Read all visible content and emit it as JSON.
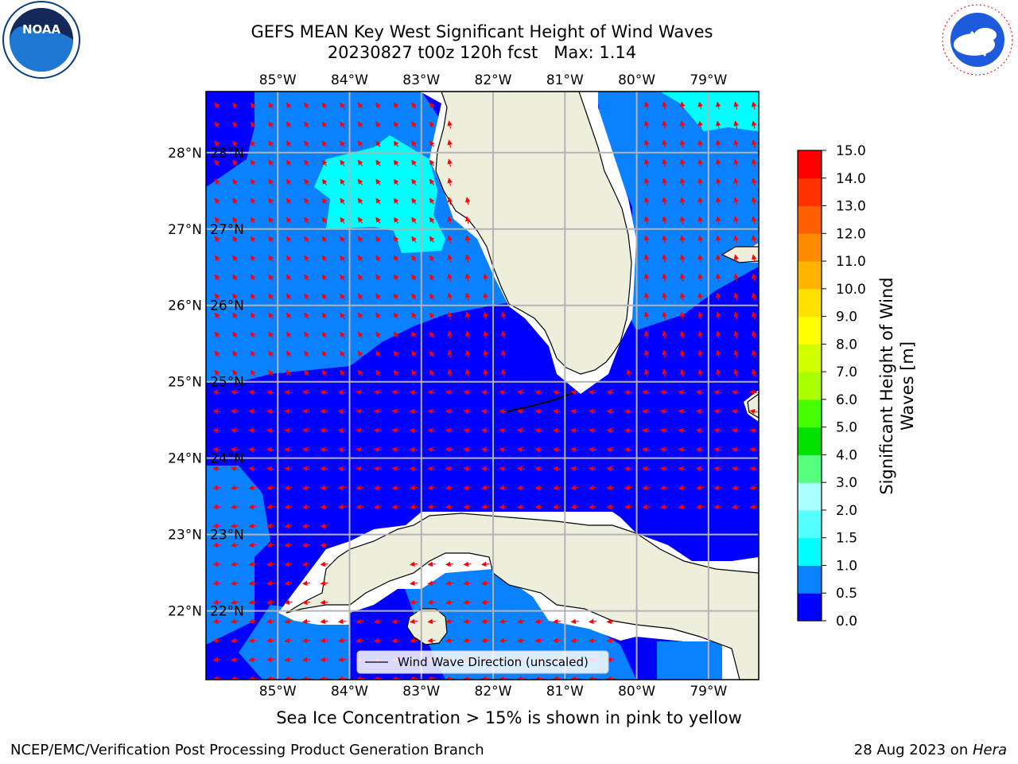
{
  "header": {
    "title_line1": "GEFS MEAN Key West Significant Height of Wind Waves",
    "title_line2": "20230827 t00z 120h fcst   Max: 1.14"
  },
  "map": {
    "lon_ticks": [
      "85°W",
      "84°W",
      "83°W",
      "82°W",
      "81°W",
      "80°W",
      "79°W"
    ],
    "lat_ticks": [
      "28°N",
      "27°N",
      "26°N",
      "25°N",
      "24°N",
      "23°N",
      "22°N"
    ],
    "lon_range": [
      -86,
      -78.3
    ],
    "lat_range": [
      21.1,
      28.8
    ],
    "legend_label": "Wind Wave Direction (unscaled)",
    "colors": {
      "land": "#eeeedc",
      "band_0_0.5": "#0000ff",
      "band_0.5_1.0": "#0a82ff",
      "band_1.0_1.5": "#00ffff",
      "arrow": "#ff0000",
      "grid": "#b4b4b4"
    }
  },
  "colorbar": {
    "label_line1": "Significant Height of Wind",
    "label_line2": "Waves [m]",
    "tick_labels": [
      "0.0",
      "0.5",
      "1.0",
      "1.5",
      "2.0",
      "3.0",
      "4.0",
      "5.0",
      "6.0",
      "7.0",
      "8.0",
      "9.0",
      "10.0",
      "11.0",
      "12.0",
      "13.0",
      "14.0",
      "15.0"
    ],
    "colors": [
      "#0000ff",
      "#0a82ff",
      "#00ffff",
      "#55ffff",
      "#aaffff",
      "#55ff7d",
      "#00e100",
      "#46ff00",
      "#aaff00",
      "#d2ff00",
      "#ffff00",
      "#ffe100",
      "#ffb400",
      "#ff8c00",
      "#ff5f00",
      "#ff3200",
      "#ff0000"
    ]
  },
  "logos": {
    "noaa_text": "NOAA",
    "nws_text": "NATIONAL WEATHER SERVICE"
  },
  "footer": {
    "note": "Sea Ice Concentration > 15% is shown in pink to yellow",
    "left": "NCEP/EMC/Verification Post Processing Product Generation Branch",
    "right_prefix": "28 Aug 2023 on ",
    "right_machine": "Hera"
  }
}
